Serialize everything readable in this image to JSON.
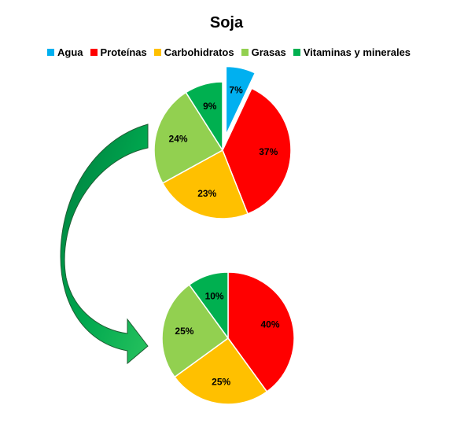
{
  "chart_data": {
    "type": "pie",
    "title": "Soja",
    "legend": [
      {
        "name": "Agua",
        "color": "#00b0f0"
      },
      {
        "name": "Proteínas",
        "color": "#ff0000"
      },
      {
        "name": "Carbohidratos",
        "color": "#ffc000"
      },
      {
        "name": "Grasas",
        "color": "#92d050"
      },
      {
        "name": "Vitaminas y minerales",
        "color": "#00b050"
      }
    ],
    "legend_position": "top",
    "pies": [
      {
        "exploded": "Agua",
        "slices": [
          {
            "name": "Agua",
            "value": 7,
            "label": "7%"
          },
          {
            "name": "Proteínas",
            "value": 37,
            "label": "37%"
          },
          {
            "name": "Carbohidratos",
            "value": 23,
            "label": "23%"
          },
          {
            "name": "Grasas",
            "value": 24,
            "label": "24%"
          },
          {
            "name": "Vitaminas y minerales",
            "value": 9,
            "label": "9%"
          }
        ]
      },
      {
        "exploded": "",
        "slices": [
          {
            "name": "Proteínas",
            "value": 40,
            "label": "40%"
          },
          {
            "name": "Carbohidratos",
            "value": 25,
            "label": "25%"
          },
          {
            "name": "Grasas",
            "value": 25,
            "label": "25%"
          },
          {
            "name": "Vitaminas y minerales",
            "value": 10,
            "label": "10%"
          }
        ]
      }
    ]
  }
}
